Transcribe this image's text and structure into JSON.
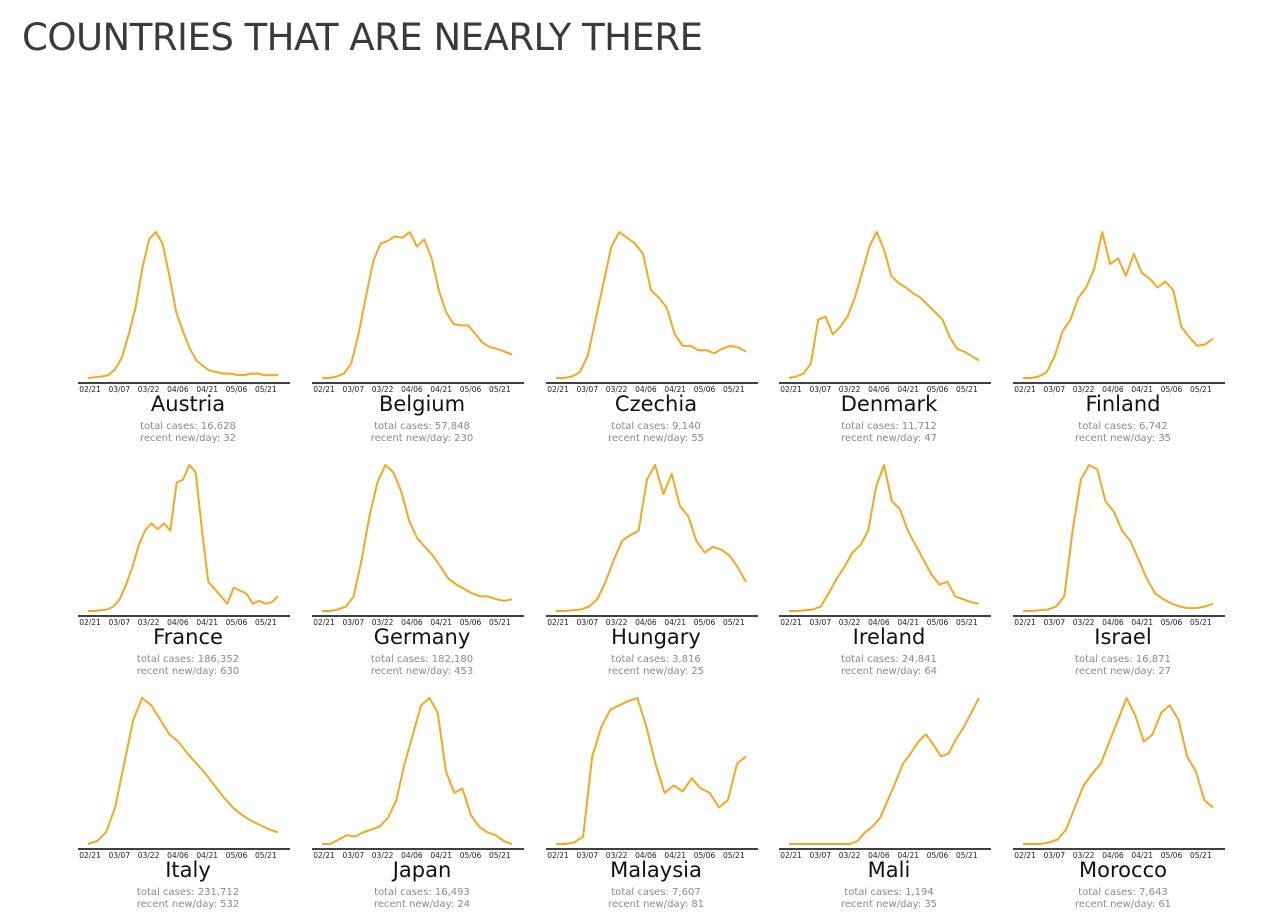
{
  "page": {
    "title": "COUNTRIES THAT ARE NEARLY THERE"
  },
  "colors": {
    "line": "#F5A623",
    "axis": "#000000",
    "text_secondary": "#8a8a8a"
  },
  "chart_data": [
    {
      "type": "line",
      "country": "Austria",
      "total_cases": "total cases: 16,628",
      "recent_per_day": "recent new/day: 32",
      "x_ticks": [
        "02/21",
        "03/07",
        "03/22",
        "04/06",
        "04/21",
        "05/06",
        "05/21"
      ],
      "series": [
        {
          "values": [
            0,
            0.5,
            1,
            2,
            6,
            14,
            30,
            48,
            75,
            95,
            100,
            92,
            70,
            45,
            32,
            20,
            12,
            8,
            5,
            4,
            3,
            3,
            2,
            2,
            3,
            3,
            2,
            2,
            2
          ]
        }
      ]
    },
    {
      "type": "line",
      "country": "Belgium",
      "total_cases": "total cases: 57,848",
      "recent_per_day": "recent new/day: 230",
      "x_ticks": [
        "02/21",
        "03/07",
        "03/22",
        "04/06",
        "04/21",
        "05/06",
        "05/21"
      ],
      "series": [
        {
          "values": [
            0,
            0,
            1,
            3,
            10,
            30,
            55,
            80,
            92,
            94,
            97,
            96,
            100,
            90,
            95,
            82,
            60,
            45,
            37,
            36,
            36,
            30,
            24,
            21,
            20,
            18,
            16
          ]
        }
      ]
    },
    {
      "type": "line",
      "country": "Czechia",
      "total_cases": "total cases: 9,140",
      "recent_per_day": "recent new/day: 55",
      "x_ticks": [
        "02/21",
        "03/07",
        "03/22",
        "04/06",
        "04/21",
        "05/06",
        "05/21"
      ],
      "series": [
        {
          "values": [
            0,
            0,
            1,
            4,
            15,
            40,
            65,
            90,
            100,
            96,
            92,
            85,
            60,
            55,
            48,
            30,
            22,
            22,
            19,
            19,
            17,
            20,
            22,
            21,
            18
          ]
        }
      ]
    },
    {
      "type": "line",
      "country": "Denmark",
      "total_cases": "total cases: 11,712",
      "recent_per_day": "recent new/day: 47",
      "x_ticks": [
        "02/21",
        "03/07",
        "03/22",
        "04/06",
        "04/21",
        "05/06",
        "05/21"
      ],
      "series": [
        {
          "values": [
            0,
            1,
            3,
            10,
            40,
            42,
            30,
            35,
            42,
            55,
            72,
            90,
            100,
            88,
            70,
            65,
            62,
            58,
            55,
            50,
            45,
            40,
            28,
            20,
            18,
            15,
            12
          ]
        }
      ]
    },
    {
      "type": "line",
      "country": "Finland",
      "total_cases": "total cases: 6,742",
      "recent_per_day": "recent new/day: 35",
      "x_ticks": [
        "02/21",
        "03/07",
        "03/22",
        "04/06",
        "04/21",
        "05/06",
        "05/21"
      ],
      "series": [
        {
          "values": [
            0,
            0,
            1,
            4,
            15,
            32,
            40,
            55,
            62,
            75,
            100,
            78,
            82,
            70,
            85,
            72,
            68,
            62,
            66,
            60,
            35,
            28,
            22,
            23,
            27
          ]
        }
      ]
    },
    {
      "type": "line",
      "country": "France",
      "total_cases": "total cases: 186,352",
      "recent_per_day": "recent new/day: 630",
      "x_ticks": [
        "02/21",
        "03/07",
        "03/22",
        "04/06",
        "04/21",
        "05/06",
        "05/21"
      ],
      "series": [
        {
          "values": [
            0,
            0,
            0.5,
            1,
            3,
            8,
            18,
            30,
            45,
            55,
            60,
            56,
            60,
            55,
            88,
            90,
            100,
            95,
            55,
            20,
            15,
            10,
            5,
            16,
            14,
            12,
            5,
            7,
            5,
            6,
            10
          ]
        }
      ]
    },
    {
      "type": "line",
      "country": "Germany",
      "total_cases": "total cases: 182,180",
      "recent_per_day": "recent new/day: 453",
      "x_ticks": [
        "02/21",
        "03/07",
        "03/22",
        "04/06",
        "04/21",
        "05/06",
        "05/21"
      ],
      "series": [
        {
          "values": [
            0,
            0,
            1,
            3,
            10,
            35,
            65,
            88,
            100,
            95,
            82,
            62,
            50,
            44,
            38,
            30,
            22,
            18,
            15,
            12,
            10,
            10,
            8,
            7,
            8
          ]
        }
      ]
    },
    {
      "type": "line",
      "country": "Hungary",
      "total_cases": "total cases: 3,816",
      "recent_per_day": "recent new/day: 25",
      "x_ticks": [
        "02/21",
        "03/07",
        "03/22",
        "04/06",
        "04/21",
        "05/06",
        "05/21"
      ],
      "series": [
        {
          "values": [
            0,
            0,
            0.5,
            1,
            3,
            8,
            20,
            35,
            48,
            52,
            55,
            90,
            100,
            80,
            94,
            72,
            65,
            48,
            40,
            44,
            42,
            38,
            30,
            20
          ]
        }
      ]
    },
    {
      "type": "line",
      "country": "Ireland",
      "total_cases": "total cases: 24,841",
      "recent_per_day": "recent new/day: 64",
      "x_ticks": [
        "02/21",
        "03/07",
        "03/22",
        "04/06",
        "04/21",
        "05/06",
        "05/21"
      ],
      "series": [
        {
          "values": [
            0,
            0,
            0.5,
            1,
            3,
            12,
            22,
            30,
            40,
            45,
            55,
            85,
            100,
            75,
            70,
            55,
            45,
            35,
            25,
            18,
            20,
            10,
            8,
            6,
            5
          ]
        }
      ]
    },
    {
      "type": "line",
      "country": "Israel",
      "total_cases": "total cases: 16,871",
      "recent_per_day": "recent new/day: 27",
      "x_ticks": [
        "02/21",
        "03/07",
        "03/22",
        "04/06",
        "04/21",
        "05/06",
        "05/21"
      ],
      "series": [
        {
          "values": [
            0,
            0,
            0.5,
            1,
            3,
            10,
            55,
            90,
            100,
            97,
            75,
            68,
            55,
            48,
            35,
            22,
            12,
            8,
            5,
            3,
            2,
            2,
            3,
            5
          ]
        }
      ]
    },
    {
      "type": "line",
      "country": "Italy",
      "total_cases": "total cases: 231,712",
      "recent_per_day": "recent new/day: 532",
      "x_ticks": [
        "02/21",
        "03/07",
        "03/22",
        "04/06",
        "04/21",
        "05/06",
        "05/21"
      ],
      "series": [
        {
          "values": [
            0,
            2,
            8,
            25,
            55,
            85,
            100,
            95,
            85,
            75,
            70,
            62,
            55,
            48,
            40,
            32,
            25,
            20,
            16,
            13,
            10,
            8
          ]
        }
      ]
    },
    {
      "type": "line",
      "country": "Japan",
      "total_cases": "total cases: 16,493",
      "recent_per_day": "recent new/day: 24",
      "x_ticks": [
        "02/21",
        "03/07",
        "03/22",
        "04/06",
        "04/21",
        "05/06",
        "05/21"
      ],
      "series": [
        {
          "values": [
            0,
            0,
            3,
            6,
            5,
            8,
            10,
            12,
            18,
            30,
            55,
            75,
            95,
            100,
            90,
            50,
            35,
            38,
            20,
            12,
            8,
            6,
            2,
            0
          ]
        }
      ]
    },
    {
      "type": "line",
      "country": "Malaysia",
      "total_cases": "total cases: 7,607",
      "recent_per_day": "recent new/day: 81",
      "x_ticks": [
        "02/21",
        "03/07",
        "03/22",
        "04/06",
        "04/21",
        "05/06",
        "05/21"
      ],
      "series": [
        {
          "values": [
            0,
            0,
            1,
            5,
            60,
            80,
            92,
            95,
            98,
            100,
            80,
            55,
            35,
            40,
            36,
            45,
            38,
            35,
            25,
            30,
            55,
            60
          ]
        }
      ]
    },
    {
      "type": "line",
      "country": "Mali",
      "total_cases": "total cases: 1,194",
      "recent_per_day": "recent new/day: 35",
      "x_ticks": [
        "02/21",
        "03/07",
        "03/22",
        "04/06",
        "04/21",
        "05/06",
        "05/21"
      ],
      "series": [
        {
          "values": [
            0,
            0,
            0,
            0,
            0,
            0,
            0,
            0,
            0,
            2,
            8,
            12,
            18,
            30,
            42,
            55,
            62,
            70,
            75,
            68,
            60,
            62,
            72,
            80,
            90,
            100
          ]
        }
      ]
    },
    {
      "type": "line",
      "country": "Morocco",
      "total_cases": "total cases: 7,643",
      "recent_per_day": "recent new/day: 61",
      "x_ticks": [
        "02/21",
        "03/07",
        "03/22",
        "04/06",
        "04/21",
        "05/06",
        "05/21"
      ],
      "series": [
        {
          "values": [
            0,
            0,
            0,
            1,
            3,
            10,
            25,
            40,
            48,
            55,
            70,
            85,
            100,
            88,
            70,
            75,
            90,
            95,
            85,
            60,
            50,
            30,
            25
          ]
        }
      ]
    }
  ]
}
